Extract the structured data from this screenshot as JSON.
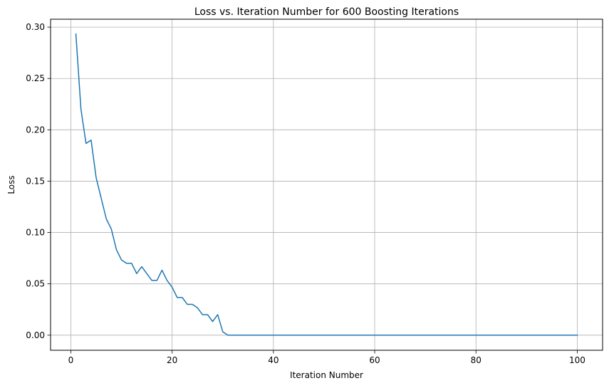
{
  "chart_data": {
    "type": "line",
    "title": "Loss vs. Iteration Number for 600 Boosting Iterations",
    "xlabel": "Iteration Number",
    "ylabel": "Loss",
    "xlim": [
      -4,
      105
    ],
    "ylim": [
      -0.0147,
      0.3077
    ],
    "xticks": [
      0,
      20,
      40,
      60,
      80,
      100
    ],
    "xtick_labels": [
      "0",
      "20",
      "40",
      "60",
      "80",
      "100"
    ],
    "yticks": [
      0.0,
      0.05,
      0.1,
      0.15,
      0.2,
      0.25,
      0.3
    ],
    "ytick_labels": [
      "0.00",
      "0.05",
      "0.10",
      "0.15",
      "0.20",
      "0.25",
      "0.30"
    ],
    "grid": true,
    "series": [
      {
        "color": "#1f77b4",
        "x": [
          1,
          2,
          3,
          4,
          5,
          6,
          7,
          8,
          9,
          10,
          11,
          12,
          13,
          14,
          15,
          16,
          17,
          18,
          19,
          20,
          21,
          22,
          23,
          24,
          25,
          26,
          27,
          28,
          29,
          30,
          31,
          32,
          33,
          34,
          35,
          36,
          37,
          38,
          39,
          40,
          41,
          42,
          43,
          44,
          45,
          46,
          47,
          48,
          49,
          50,
          51,
          52,
          53,
          54,
          55,
          56,
          57,
          58,
          59,
          60,
          61,
          62,
          63,
          64,
          65,
          66,
          67,
          68,
          69,
          70,
          71,
          72,
          73,
          74,
          75,
          76,
          77,
          78,
          79,
          80,
          81,
          82,
          83,
          84,
          85,
          86,
          87,
          88,
          89,
          90,
          91,
          92,
          93,
          94,
          95,
          96,
          97,
          98,
          99,
          100
        ],
        "y": [
          0.2933,
          0.22,
          0.1867,
          0.19,
          0.1533,
          0.1333,
          0.1133,
          0.1033,
          0.0833,
          0.0733,
          0.07,
          0.07,
          0.06,
          0.0667,
          0.06,
          0.0533,
          0.0533,
          0.0633,
          0.0533,
          0.0467,
          0.0367,
          0.0367,
          0.03,
          0.03,
          0.0267,
          0.02,
          0.02,
          0.0133,
          0.02,
          0.0033,
          0.0,
          0.0,
          0.0,
          0.0,
          0.0,
          0.0,
          0.0,
          0.0,
          0.0,
          0.0,
          0.0,
          0.0,
          0.0,
          0.0,
          0.0,
          0.0,
          0.0,
          0.0,
          0.0,
          0.0,
          0.0,
          0.0,
          0.0,
          0.0,
          0.0,
          0.0,
          0.0,
          0.0,
          0.0,
          0.0,
          0.0,
          0.0,
          0.0,
          0.0,
          0.0,
          0.0,
          0.0,
          0.0,
          0.0,
          0.0,
          0.0,
          0.0,
          0.0,
          0.0,
          0.0,
          0.0,
          0.0,
          0.0,
          0.0,
          0.0,
          0.0,
          0.0,
          0.0,
          0.0,
          0.0,
          0.0,
          0.0,
          0.0,
          0.0,
          0.0,
          0.0,
          0.0,
          0.0,
          0.0,
          0.0,
          0.0,
          0.0,
          0.0,
          0.0,
          0.0
        ]
      }
    ]
  }
}
